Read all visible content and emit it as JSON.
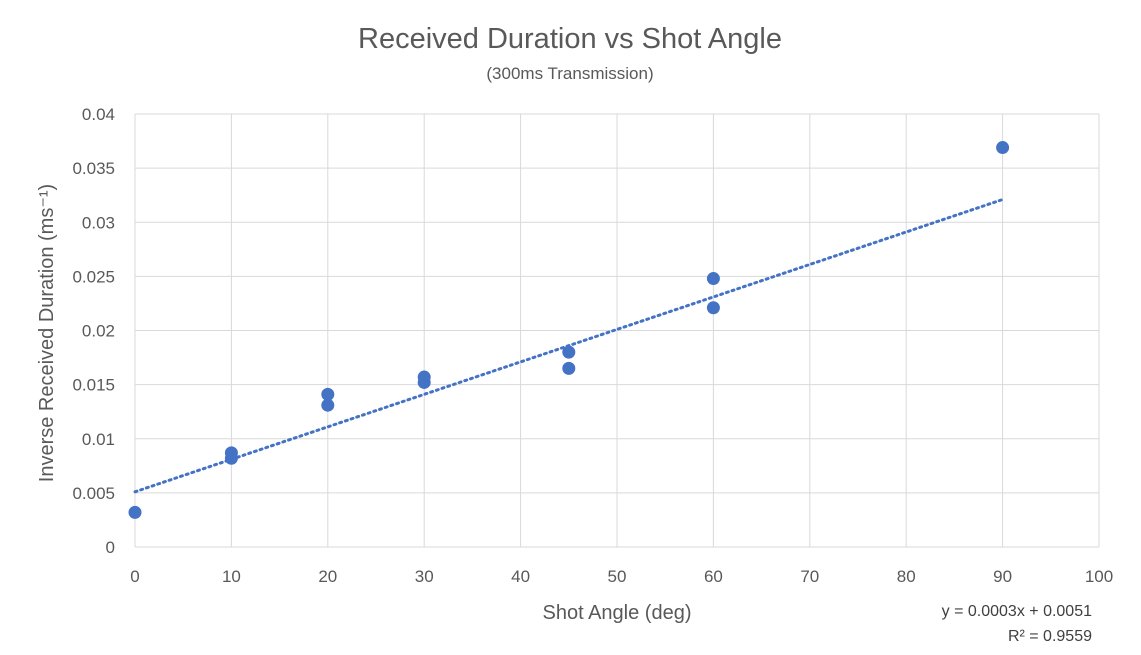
{
  "chart_data": {
    "type": "scatter",
    "title": "Received Duration vs Shot Angle",
    "subtitle": "(300ms Transmission)",
    "xlabel": "Shot Angle (deg)",
    "ylabel": "Inverse Received Duration (ms⁻¹)",
    "xlim": [
      0,
      100
    ],
    "ylim": [
      0,
      0.04
    ],
    "xticks": [
      "0",
      "10",
      "20",
      "30",
      "40",
      "50",
      "60",
      "70",
      "80",
      "90",
      "100"
    ],
    "yticks": [
      "0",
      "0.005",
      "0.01",
      "0.015",
      "0.02",
      "0.025",
      "0.03",
      "0.035",
      "0.04"
    ],
    "grid": true,
    "marker_color": "#4472C4",
    "series": [
      {
        "points": [
          {
            "x": 0,
            "y": 0.0032
          },
          {
            "x": 10,
            "y": 0.0087
          },
          {
            "x": 10,
            "y": 0.0082
          },
          {
            "x": 20,
            "y": 0.0141
          },
          {
            "x": 20,
            "y": 0.0131
          },
          {
            "x": 30,
            "y": 0.0157
          },
          {
            "x": 30,
            "y": 0.0152
          },
          {
            "x": 45,
            "y": 0.018
          },
          {
            "x": 45,
            "y": 0.0165
          },
          {
            "x": 60,
            "y": 0.0248
          },
          {
            "x": 60,
            "y": 0.0221
          },
          {
            "x": 90,
            "y": 0.0369
          }
        ]
      }
    ],
    "trendline": {
      "type": "linear",
      "slope": 0.0003,
      "intercept": 0.0051,
      "x_range": [
        0,
        90
      ],
      "style": "dotted",
      "color": "#4472C4",
      "equation_label": "y = 0.0003x + 0.0051",
      "r2_label": "R² = 0.9559"
    }
  }
}
